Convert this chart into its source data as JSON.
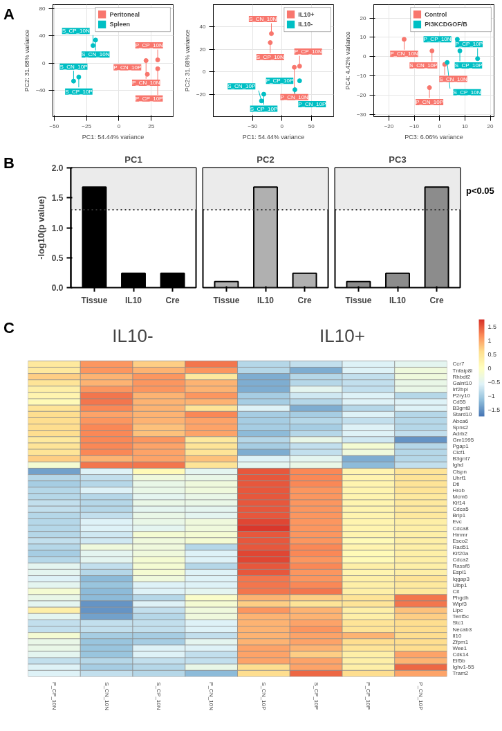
{
  "chart_data": [
    {
      "type": "scatter",
      "xlabel": "PC1: 54.44% variance",
      "ylabel": "PC2: 31.68% variance",
      "xlim": [
        -51,
        42
      ],
      "ylim": [
        -78,
        86
      ],
      "xticks": [
        -50,
        -25,
        0,
        25
      ],
      "yticks": [
        -40,
        0,
        40,
        80
      ],
      "grid": true,
      "legend": "top right",
      "marker": "circle",
      "series": [
        {
          "name": "Peritoneal",
          "color": "#f8766d",
          "x": [
            30,
            21,
            30,
            22
          ],
          "values": [
            5,
            4,
            -8,
            -16
          ]
        },
        {
          "name": "Spleen",
          "color": "#00bfc4",
          "x": [
            -18,
            -20,
            -31,
            -35
          ],
          "values": [
            34,
            26,
            -20,
            -26
          ]
        }
      ],
      "annotations": [
        "A",
        {
          "text": "P_CP_10N",
          "x": 30,
          "y": 5
        },
        {
          "text": "P_CN_10N",
          "x": 21,
          "y": 4
        },
        {
          "text": "P_CP_10P",
          "x": 30,
          "y": -8
        },
        {
          "text": "P_CN_10P",
          "x": 22,
          "y": -16
        },
        {
          "text": "S_CN_10N",
          "x": -18,
          "y": 34
        },
        {
          "text": "S_CP_10N",
          "x": -20,
          "y": 26
        },
        {
          "text": "S_CP_10P",
          "x": -31,
          "y": -20
        },
        {
          "text": "S_CN_10P",
          "x": -35,
          "y": -26
        }
      ]
    },
    {
      "type": "scatter",
      "xlabel": "PC1: 54.44% variance",
      "ylabel": "PC2: 31.68% variance",
      "xlim": [
        -117,
        88
      ],
      "ylim": [
        -40,
        60
      ],
      "xticks": [
        -50,
        0,
        50
      ],
      "yticks": [
        -20,
        0,
        20,
        40
      ],
      "grid": true,
      "legend": "top right",
      "marker": "circle",
      "series": [
        {
          "name": "IL10+",
          "color": "#f8766d",
          "x": [
            -18,
            -20,
            30,
            21
          ],
          "values": [
            34,
            26,
            5,
            4
          ]
        },
        {
          "name": "IL10-",
          "color": "#00bfc4",
          "x": [
            30,
            22,
            -31,
            -35
          ],
          "values": [
            -8,
            -16,
            -20,
            -26
          ]
        }
      ],
      "annotations": [
        {
          "text": "S_CN_10N",
          "x": -18,
          "y": 34
        },
        {
          "text": "S_CP_10N",
          "x": -20,
          "y": 26
        },
        {
          "text": "P_CP_10N",
          "x": 30,
          "y": 5
        },
        {
          "text": "P_CN_10N",
          "x": 21,
          "y": 4
        },
        {
          "text": "P_CP_10P",
          "x": 30,
          "y": -8
        },
        {
          "text": "P_CN_10P",
          "x": 22,
          "y": -16
        },
        {
          "text": "S_CP_10P",
          "x": -31,
          "y": -20
        },
        {
          "text": "S_CN_10P",
          "x": -35,
          "y": -26
        }
      ]
    },
    {
      "type": "scatter",
      "xlabel": "PC3: 6.06% variance",
      "ylabel": "PC4: 4.42% variance",
      "xlim": [
        -26,
        21.5
      ],
      "ylim": [
        -31,
        27
      ],
      "xticks": [
        -20,
        -10,
        0,
        10,
        20
      ],
      "yticks": [
        -30,
        -20,
        -10,
        0,
        10,
        20
      ],
      "grid": true,
      "legend": "top right",
      "marker": "circle",
      "series": [
        {
          "name": "Control",
          "color": "#f8766d",
          "x": [
            -14,
            -3,
            2,
            -4
          ],
          "values": [
            9,
            3,
            -4,
            -16
          ]
        },
        {
          "name": "PI3KCDGOF/B",
          "color": "#00bfc4",
          "x": [
            7,
            8,
            3,
            15
          ],
          "values": [
            9,
            3,
            -3,
            -1
          ]
        }
      ],
      "annotations": [
        {
          "text": "P_CN_10N",
          "x": -14,
          "y": 9
        },
        {
          "text": "S_CN_10P",
          "x": -3,
          "y": 3
        },
        {
          "text": "S_CN_10N",
          "x": 2,
          "y": -4
        },
        {
          "text": "P_CN_10P",
          "x": -4,
          "y": -16
        },
        {
          "text": "P_CP_10N",
          "x": 7,
          "y": 9
        },
        {
          "text": "S_CP_10P",
          "x": 8,
          "y": 3
        },
        {
          "text": "S_CP_10N",
          "x": 3,
          "y": -3
        },
        {
          "text": "P_CP_10P",
          "x": 15,
          "y": -1
        }
      ]
    },
    {
      "type": "bar",
      "title": "PC1",
      "ylabel": "-log10(p value)",
      "categories": [
        "Tissue",
        "IL10",
        "Cre"
      ],
      "values": [
        1.68,
        0.24,
        0.24
      ],
      "colors": [
        "#000000",
        "#000000",
        "#000000"
      ],
      "ylim": [
        0,
        2
      ],
      "yticks": [
        {
          "value": 0,
          "label": "0.0"
        },
        {
          "value": 0.5,
          "label": "0.5"
        },
        {
          "value": 1,
          "label": "1.0"
        },
        {
          "value": 1.5,
          "label": "1.5"
        },
        {
          "value": 2,
          "label": "2.0"
        }
      ],
      "grid": false,
      "annotations": [
        "B"
      ],
      "bands": [
        {
          "axis": "y",
          "from": 1.3,
          "to": 2,
          "color": "#ebebeb"
        }
      ],
      "ref_lines": [
        {
          "axis": "y",
          "value": 1.3,
          "line_style": "dotted",
          "color": "#333333"
        }
      ]
    },
    {
      "type": "bar",
      "title": "PC2",
      "categories": [
        "Tissue",
        "IL10",
        "Cre"
      ],
      "values": [
        0.1,
        1.68,
        0.24
      ],
      "colors": [
        "#b0b0b0",
        "#b0b0b0",
        "#b0b0b0"
      ],
      "ylim": [
        0,
        2
      ],
      "grid": false,
      "tick_labels": "x",
      "bands": [
        {
          "axis": "y",
          "from": 1.3,
          "to": 2,
          "color": "#ebebeb"
        }
      ],
      "ref_lines": [
        {
          "axis": "y",
          "value": 1.3,
          "line_style": "dotted",
          "color": "#333333"
        }
      ]
    },
    {
      "type": "bar",
      "title": "PC3",
      "categories": [
        "Tissue",
        "IL10",
        "Cre"
      ],
      "values": [
        0.1,
        0.24,
        1.68
      ],
      "colors": [
        "#8c8c8c",
        "#8c8c8c",
        "#8c8c8c"
      ],
      "ylim": [
        0,
        2
      ],
      "grid": false,
      "tick_labels": "x",
      "bands": [
        {
          "axis": "y",
          "from": 1.3,
          "to": 2,
          "color": "#ebebeb",
          "label": "p<0.05"
        }
      ],
      "ref_lines": [
        {
          "axis": "y",
          "value": 1.3,
          "line_style": "dotted",
          "color": "#333333"
        }
      ]
    },
    {
      "type": "heatmap",
      "annotations": [
        "C",
        "IL10-",
        "IL10+"
      ],
      "categories": [
        "P_CP_10N",
        "S_CN_10N",
        "S_CP_10N",
        "P_CN_10N",
        "S_CN_10P",
        "S_CP_10P",
        "P_CP_10P",
        "P_CN_10P"
      ],
      "y_categories": [
        "Ccr7",
        "Tnfaip8l",
        "Rhbdf2",
        "Galnt10",
        "Irf2bpl",
        "P2ry10",
        "Cd55",
        "B3gnt8",
        "Stard10",
        "Abca6",
        "Spns2",
        "Adrb2",
        "Gm1995",
        "Pgap1",
        "Clcf1",
        "B3gnt7",
        "Ighd",
        "Clspn",
        "Uhrf1",
        "Dtl",
        "Hrob",
        "Mcm6",
        "Kif14",
        "Cdca5",
        "Brip1",
        "Evc",
        "Cdca8",
        "Hmmr",
        "Esco2",
        "Rad51",
        "Kif20a",
        "Cdca2",
        "Rassf6",
        "Espl1",
        "Iqgap3",
        "Ulbp1",
        "Cit",
        "Phgdh",
        "Wipf3",
        "Lipc",
        "Tent5c",
        "Stc1",
        "Necab3",
        "Il10",
        "Zfpm1",
        "Wee1",
        "Cdk14",
        "Eif5b",
        "Ighv1-55",
        "Tram2"
      ],
      "clim": [
        -1.75,
        1.75
      ],
      "cticks": [
        -1.5,
        -1,
        -0.5,
        0,
        0.5,
        1,
        1.5
      ],
      "cells": [
        [
          0.4,
          1.1,
          0.7,
          1.3,
          -0.9,
          -0.8,
          -0.6,
          -0.5
        ],
        [
          0.4,
          1.1,
          0.9,
          1.1,
          -0.9,
          -1.3,
          -0.6,
          -0.3
        ],
        [
          0.7,
          0.9,
          1.1,
          0.4,
          -1.3,
          -0.9,
          -0.8,
          -0.3
        ],
        [
          0.5,
          0.9,
          1.1,
          0.9,
          -1.3,
          -0.9,
          -0.8,
          -0.4
        ],
        [
          0.3,
          1.1,
          1.1,
          0.9,
          -1.3,
          -0.5,
          -0.8,
          -0.4
        ],
        [
          0.2,
          1.3,
          0.9,
          1.1,
          -1.0,
          -0.7,
          -0.6,
          -0.9
        ],
        [
          0.1,
          1.3,
          0.9,
          0.9,
          -1.0,
          -0.9,
          -0.6,
          -0.6
        ],
        [
          0.5,
          1.2,
          0.9,
          0.5,
          -0.6,
          -1.3,
          -0.9,
          -0.6
        ],
        [
          0.6,
          1.0,
          0.9,
          1.2,
          -1.0,
          -1.0,
          -0.6,
          -0.9
        ],
        [
          0.6,
          1.1,
          0.9,
          1.0,
          -1.0,
          -0.9,
          -0.8,
          -0.9
        ],
        [
          0.6,
          1.2,
          0.8,
          1.0,
          -1.0,
          -1.0,
          -0.6,
          -0.9
        ],
        [
          0.6,
          1.2,
          0.8,
          1.0,
          -1.2,
          -0.9,
          -0.6,
          -0.8
        ],
        [
          0.4,
          1.2,
          1.1,
          0.4,
          -0.9,
          -0.4,
          -0.7,
          -1.5
        ],
        [
          0.5,
          1.2,
          1.0,
          0.5,
          -1.0,
          -0.8,
          -0.2,
          -0.9
        ],
        [
          0.5,
          1.2,
          1.0,
          0.5,
          -1.3,
          -0.8,
          -0.3,
          -0.9
        ],
        [
          0.7,
          0.9,
          1.0,
          0.8,
          -0.6,
          -0.5,
          -1.3,
          -0.9
        ],
        [
          -0.2,
          1.3,
          1.3,
          0.5,
          -0.5,
          -0.4,
          -1.2,
          -0.8
        ],
        [
          -1.4,
          -0.6,
          0.1,
          -0.5,
          1.5,
          1.2,
          0.2,
          0.5
        ],
        [
          -0.9,
          -0.8,
          -0.3,
          -0.4,
          1.5,
          1.2,
          0.2,
          0.5
        ],
        [
          -1.0,
          -0.9,
          -0.4,
          -0.3,
          1.5,
          1.2,
          0.2,
          0.5
        ],
        [
          -0.9,
          -0.6,
          -0.4,
          -0.3,
          1.5,
          1.1,
          0.2,
          0.5
        ],
        [
          -0.9,
          -0.9,
          -0.5,
          -0.4,
          1.5,
          1.1,
          0.2,
          0.4
        ],
        [
          -0.8,
          -0.9,
          -0.4,
          -0.4,
          1.5,
          1.1,
          0.2,
          0.4
        ],
        [
          -0.8,
          -0.9,
          -0.5,
          -0.5,
          1.5,
          1.1,
          0.2,
          0.4
        ],
        [
          -0.9,
          -0.8,
          -0.4,
          -0.5,
          1.5,
          1.1,
          0.2,
          0.4
        ],
        [
          -0.9,
          -0.6,
          -0.4,
          -0.3,
          1.6,
          1.1,
          0.2,
          0.3
        ],
        [
          -0.9,
          -0.6,
          -0.5,
          -0.3,
          1.7,
          1.1,
          0.2,
          0.3
        ],
        [
          -0.9,
          -0.7,
          -0.2,
          -0.2,
          1.5,
          1.1,
          0.2,
          0.3
        ],
        [
          -0.8,
          -0.7,
          -0.3,
          -0.2,
          1.5,
          1.1,
          0.1,
          0.3
        ],
        [
          -0.9,
          -0.3,
          -0.3,
          -0.9,
          1.5,
          1.2,
          0.2,
          0.3
        ],
        [
          -1.0,
          -0.5,
          -0.3,
          -0.6,
          1.6,
          1.2,
          0.1,
          0.3
        ],
        [
          -0.9,
          -0.5,
          -0.2,
          -0.6,
          1.6,
          1.1,
          0.1,
          0.3
        ],
        [
          -0.5,
          -0.8,
          -0.2,
          -0.9,
          1.5,
          1.2,
          0.3,
          0.3
        ],
        [
          -0.5,
          -0.9,
          -0.2,
          -0.6,
          1.5,
          1.1,
          0.2,
          0.3
        ],
        [
          -0.6,
          -1.2,
          -0.3,
          -0.6,
          1.3,
          1.1,
          0.3,
          0.5
        ],
        [
          -0.5,
          -1.1,
          -0.6,
          -0.6,
          1.3,
          1.2,
          0.3,
          0.4
        ],
        [
          -0.2,
          -1.2,
          -0.6,
          -0.5,
          1.3,
          1.3,
          0.3,
          0.4
        ],
        [
          -0.4,
          -1.2,
          -0.9,
          -0.1,
          0.9,
          0.7,
          0.5,
          1.3
        ],
        [
          -0.5,
          -1.5,
          -0.6,
          -0.2,
          0.7,
          0.5,
          0.5,
          1.3
        ],
        [
          0.3,
          -1.5,
          -0.8,
          -0.3,
          1.1,
          0.9,
          0.3,
          0.8
        ],
        [
          -0.5,
          -1.4,
          -0.9,
          -0.3,
          0.9,
          0.9,
          0.3,
          0.7
        ],
        [
          -0.8,
          -0.8,
          -0.8,
          -0.6,
          0.9,
          1.0,
          0.5,
          0.6
        ],
        [
          -0.8,
          -0.8,
          -0.8,
          -0.6,
          0.9,
          1.1,
          0.5,
          0.6
        ],
        [
          -0.2,
          -1.0,
          -1.0,
          -0.8,
          0.9,
          1.0,
          0.9,
          0.6
        ],
        [
          -0.4,
          -1.1,
          -1.0,
          -0.5,
          0.9,
          1.0,
          0.6,
          0.6
        ],
        [
          -0.4,
          -1.1,
          -0.6,
          -0.6,
          1.0,
          0.9,
          0.5,
          0.6
        ],
        [
          -0.5,
          -1.1,
          -0.6,
          -0.8,
          1.0,
          0.7,
          0.3,
          1.0
        ],
        [
          -0.8,
          -0.9,
          -0.8,
          -0.8,
          1.0,
          1.0,
          0.3,
          0.9
        ],
        [
          -0.6,
          -1.0,
          -0.9,
          -0.4,
          0.6,
          1.0,
          0.3,
          1.4
        ],
        [
          -0.6,
          -0.8,
          -0.9,
          -1.2,
          0.6,
          1.4,
          0.6,
          1.0
        ]
      ]
    }
  ]
}
